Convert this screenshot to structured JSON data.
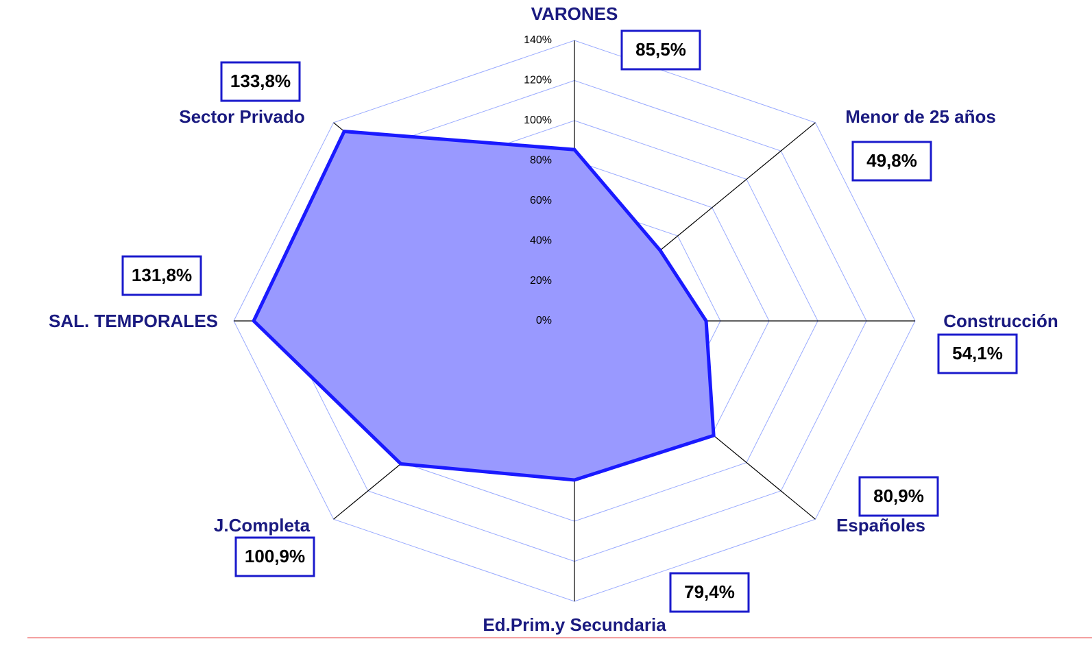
{
  "chart_data": {
    "type": "radar",
    "categories": [
      "VARONES",
      "Menor de 25 años",
      "Construcción",
      "Españoles",
      "Ed.Prim.y Secundaria",
      "J.Completa",
      "SAL. TEMPORALES",
      "Sector Privado"
    ],
    "series": [
      {
        "name": null,
        "color": "#9999ff",
        "edge_color": "#1a1aff",
        "values": [
          85.5,
          49.8,
          54.1,
          80.9,
          79.4,
          100.9,
          131.8,
          133.8
        ],
        "value_labels": [
          "85,5%",
          "49,8%",
          "54,1%",
          "80,9%",
          "79,4%",
          "100,9%",
          "131,8%",
          "133,8%"
        ]
      }
    ],
    "ylim": [
      0,
      140
    ],
    "yticks": [
      {
        "value": 0,
        "label": "0%"
      },
      {
        "value": 20,
        "label": "20%"
      },
      {
        "value": 40,
        "label": "40%"
      },
      {
        "value": 60,
        "label": "60%"
      },
      {
        "value": 80,
        "label": "80%"
      },
      {
        "value": 100,
        "label": "100%"
      },
      {
        "value": 120,
        "label": "120%"
      },
      {
        "value": 140,
        "label": "140%"
      }
    ],
    "grid": true
  }
}
